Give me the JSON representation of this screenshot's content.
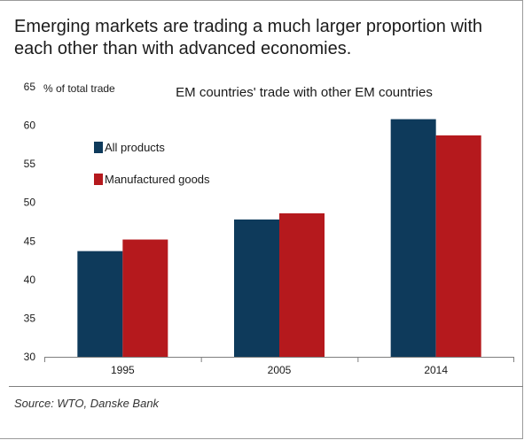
{
  "headline": "Emerging markets are trading a much larger proportion with each other than with advanced economies.",
  "source": "Source: WTO, Danske Bank",
  "colors": {
    "all_products": "#0e3a5b",
    "manufactured_goods": "#b5191d",
    "axis": "#7f7f7f"
  },
  "chart_data": {
    "type": "bar",
    "title": "EM countries' trade with other EM countries",
    "ylabel": "% of total trade",
    "xlabel": "",
    "categories": [
      "1995",
      "2005",
      "2014"
    ],
    "ylim": [
      30,
      65
    ],
    "yticks": [
      30,
      35,
      40,
      45,
      50,
      55,
      60,
      65
    ],
    "grid": false,
    "legend_position": "left",
    "series": [
      {
        "name": "All products",
        "values": [
          43.7,
          47.8,
          60.8
        ]
      },
      {
        "name": "Manufactured goods",
        "values": [
          45.2,
          48.6,
          58.7
        ]
      }
    ]
  }
}
